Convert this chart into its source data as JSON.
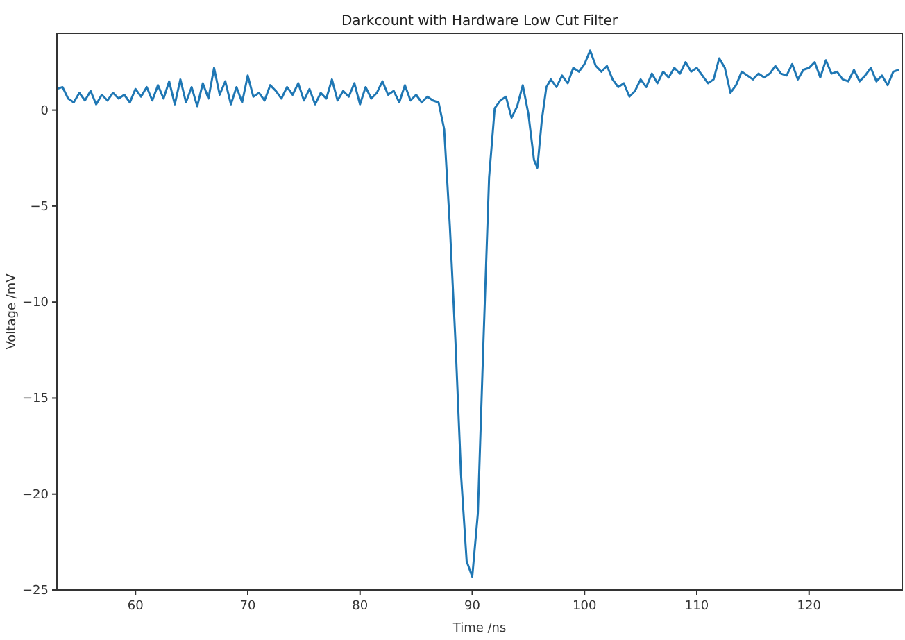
{
  "chart_data": {
    "type": "line",
    "title": "Darkcount with Hardware Low Cut Filter",
    "xlabel": "Time /ns",
    "ylabel": "Voltage /mV",
    "xlim": [
      53,
      128.3
    ],
    "ylim": [
      -25,
      4
    ],
    "xticks": [
      60,
      70,
      80,
      90,
      100,
      110,
      120
    ],
    "yticks": [
      -25,
      -20,
      -15,
      -10,
      -5,
      0
    ],
    "grid": false,
    "series": [
      {
        "color": "#1f77b4",
        "x": [
          53,
          53.5,
          54,
          54.5,
          55,
          55.5,
          56,
          56.5,
          57,
          57.5,
          58,
          58.5,
          59,
          59.5,
          60,
          60.5,
          61,
          61.5,
          62,
          62.5,
          63,
          63.5,
          64,
          64.5,
          65,
          65.5,
          66,
          66.5,
          67,
          67.5,
          68,
          68.5,
          69,
          69.5,
          70,
          70.5,
          71,
          71.5,
          72,
          72.5,
          73,
          73.5,
          74,
          74.5,
          75,
          75.5,
          76,
          76.5,
          77,
          77.5,
          78,
          78.5,
          79,
          79.5,
          80,
          80.5,
          81,
          81.5,
          82,
          82.5,
          83,
          83.5,
          84,
          84.5,
          85,
          85.5,
          86,
          86.5,
          87,
          87.5,
          88,
          88.5,
          89,
          89.5,
          90,
          90.5,
          91,
          91.5,
          92,
          92.5,
          93,
          93.5,
          94,
          94.5,
          95,
          95.5,
          95.8,
          96.2,
          96.6,
          97,
          97.5,
          98,
          98.5,
          99,
          99.5,
          100,
          100.5,
          101,
          101.5,
          102,
          102.5,
          103,
          103.5,
          104,
          104.5,
          105,
          105.5,
          106,
          106.5,
          107,
          107.5,
          108,
          108.5,
          109,
          109.5,
          110,
          110.5,
          111,
          111.5,
          112,
          112.5,
          113,
          113.5,
          114,
          114.5,
          115,
          115.5,
          116,
          116.5,
          117,
          117.5,
          118,
          118.5,
          119,
          119.5,
          120,
          120.5,
          121,
          121.5,
          122,
          122.5,
          123,
          123.5,
          124,
          124.5,
          125,
          125.5,
          126,
          126.5,
          127,
          127.5,
          128
        ],
        "values": [
          1.1,
          1.2,
          0.6,
          0.4,
          0.9,
          0.5,
          1.0,
          0.3,
          0.8,
          0.5,
          0.9,
          0.6,
          0.8,
          0.4,
          1.1,
          0.7,
          1.2,
          0.5,
          1.3,
          0.6,
          1.5,
          0.3,
          1.6,
          0.4,
          1.2,
          0.2,
          1.4,
          0.6,
          2.2,
          0.8,
          1.5,
          0.3,
          1.2,
          0.4,
          1.8,
          0.7,
          0.9,
          0.5,
          1.3,
          1.0,
          0.6,
          1.2,
          0.8,
          1.4,
          0.5,
          1.1,
          0.3,
          0.9,
          0.6,
          1.6,
          0.5,
          1.0,
          0.7,
          1.4,
          0.3,
          1.2,
          0.6,
          0.9,
          1.5,
          0.8,
          1.0,
          0.4,
          1.3,
          0.5,
          0.8,
          0.4,
          0.7,
          0.5,
          0.4,
          -1.0,
          -6,
          -12,
          -19,
          -23.5,
          -24.3,
          -21,
          -12,
          -3.5,
          0.1,
          0.5,
          0.7,
          -0.4,
          0.2,
          1.3,
          -0.2,
          -2.6,
          -3.0,
          -0.5,
          1.2,
          1.6,
          1.2,
          1.8,
          1.4,
          2.2,
          2.0,
          2.4,
          3.1,
          2.3,
          2.0,
          2.3,
          1.6,
          1.2,
          1.4,
          0.7,
          1.0,
          1.6,
          1.2,
          1.9,
          1.4,
          2.0,
          1.7,
          2.2,
          1.9,
          2.5,
          2.0,
          2.2,
          1.8,
          1.4,
          1.6,
          2.7,
          2.2,
          0.9,
          1.3,
          2.0,
          1.8,
          1.6,
          1.9,
          1.7,
          1.9,
          2.3,
          1.9,
          1.8,
          2.4,
          1.6,
          2.1,
          2.2,
          2.5,
          1.7,
          2.6,
          1.9,
          2.0,
          1.6,
          1.5,
          2.1,
          1.5,
          1.8,
          2.2,
          1.5,
          1.8,
          1.3,
          2.0,
          2.1
        ]
      }
    ]
  }
}
